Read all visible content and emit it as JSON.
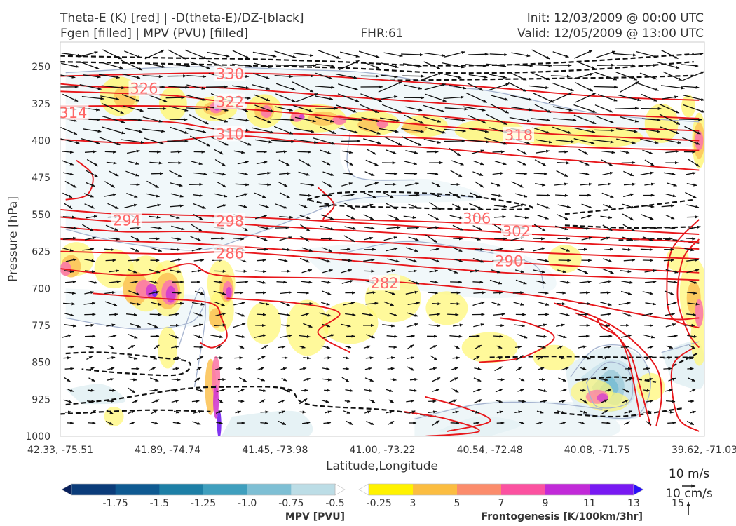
{
  "header": {
    "title_left_line1": "Theta-E (K) [red] | -D(theta-E)/DZ-[black]",
    "title_left_line2": "Fgen [filled] | MPV (PVU) [filled]",
    "fhr": "FHR:61",
    "init": "Init: 12/03/2009 @ 00:00 UTC",
    "valid": "Valid: 12/05/2009 @ 13:00 UTC"
  },
  "chart_data": {
    "type": "cross-section",
    "xlabel": "Latitude,Longitude",
    "ylabel": "Pressure [hPa]",
    "y_scale": "linear, inverted",
    "ylim": [
      1000,
      200
    ],
    "xlim": [
      0,
      6
    ],
    "x_ticks": [
      {
        "pos": 0,
        "label": "42.33, -75.51"
      },
      {
        "pos": 1,
        "label": "41.89, -74.74"
      },
      {
        "pos": 2,
        "label": "41.45, -73.98"
      },
      {
        "pos": 3,
        "label": "41.00, -73.22"
      },
      {
        "pos": 4,
        "label": "40.54, -72.48"
      },
      {
        "pos": 5,
        "label": "40.08, -71.75"
      },
      {
        "pos": 6,
        "label": "39.62, -71.03"
      }
    ],
    "y_ticks": [
      250,
      325,
      400,
      475,
      550,
      625,
      700,
      775,
      850,
      925,
      1000
    ],
    "theta_e_contours": {
      "color": "#e8171b",
      "label_color": "#ff6666",
      "labels": [
        {
          "text": "330",
          "x": 1.58,
          "p": 265
        },
        {
          "text": "326",
          "x": 0.78,
          "p": 295
        },
        {
          "text": "322",
          "x": 1.58,
          "p": 322
        },
        {
          "text": "314",
          "x": 0.12,
          "p": 344
        },
        {
          "text": "310",
          "x": 1.58,
          "p": 387
        },
        {
          "text": "318",
          "x": 4.27,
          "p": 389
        },
        {
          "text": "306",
          "x": 3.88,
          "p": 558
        },
        {
          "text": "302",
          "x": 4.25,
          "p": 584
        },
        {
          "text": "294",
          "x": 0.62,
          "p": 562
        },
        {
          "text": "298",
          "x": 1.58,
          "p": 564
        },
        {
          "text": "286",
          "x": 1.58,
          "p": 629
        },
        {
          "text": "290",
          "x": 4.18,
          "p": 645
        },
        {
          "text": "282",
          "x": 3.02,
          "p": 690
        }
      ]
    },
    "legends": {
      "mpv": {
        "label": "MPV [PVU]",
        "ticks": [
          "-1.75",
          "-1.5",
          "-1.25",
          "-1.0",
          "-0.75",
          "-0.5",
          "-0.25"
        ],
        "colors": [
          "#08205c",
          "#0b3c7a",
          "#0f5a92",
          "#1d7fa6",
          "#3f9fbe",
          "#7ebfd4",
          "#bcdde6",
          "#ffffff"
        ]
      },
      "fgen": {
        "label": "Frontogenesis [K/100km/3hr]",
        "ticks": [
          "3",
          "5",
          "7",
          "9",
          "11",
          "13",
          "15"
        ],
        "colors": [
          "#ffffff",
          "#fff200",
          "#fbbd41",
          "#fb8c6c",
          "#fb52a0",
          "#c12ad8",
          "#7819f2",
          "#2a11f9"
        ]
      }
    },
    "vector_key": {
      "horizontal": "10 m/s",
      "vertical": "10 cm/s"
    }
  }
}
